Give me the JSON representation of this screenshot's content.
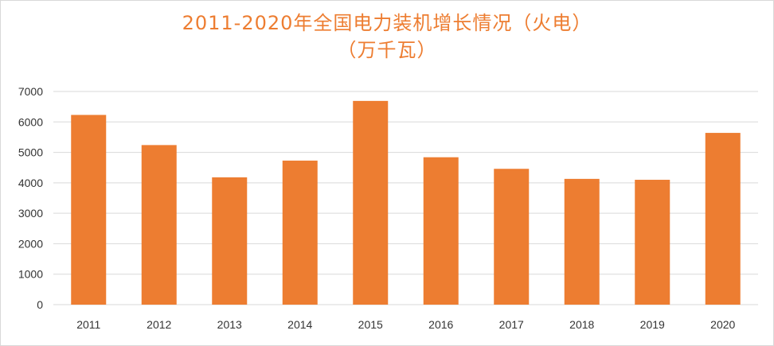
{
  "chart_data": {
    "type": "bar",
    "title_line1": "2011-2020年全国电力装机增长情况（火电）",
    "title_line2": "（万千瓦）",
    "categories": [
      "2011",
      "2012",
      "2013",
      "2014",
      "2015",
      "2016",
      "2017",
      "2018",
      "2019",
      "2020"
    ],
    "values": [
      6230,
      5240,
      4180,
      4730,
      6690,
      4840,
      4460,
      4130,
      4100,
      5640
    ],
    "ylim": [
      0,
      7000
    ],
    "yticks": [
      "0",
      "1000",
      "2000",
      "3000",
      "4000",
      "5000",
      "6000",
      "7000"
    ],
    "xlabel": "",
    "ylabel": "",
    "grid": true,
    "legend": "none",
    "colors": {
      "bar": "#ED7D31",
      "title": "#ED7D31",
      "grid": "#D9D9D9",
      "tick_text": "#333333"
    }
  }
}
